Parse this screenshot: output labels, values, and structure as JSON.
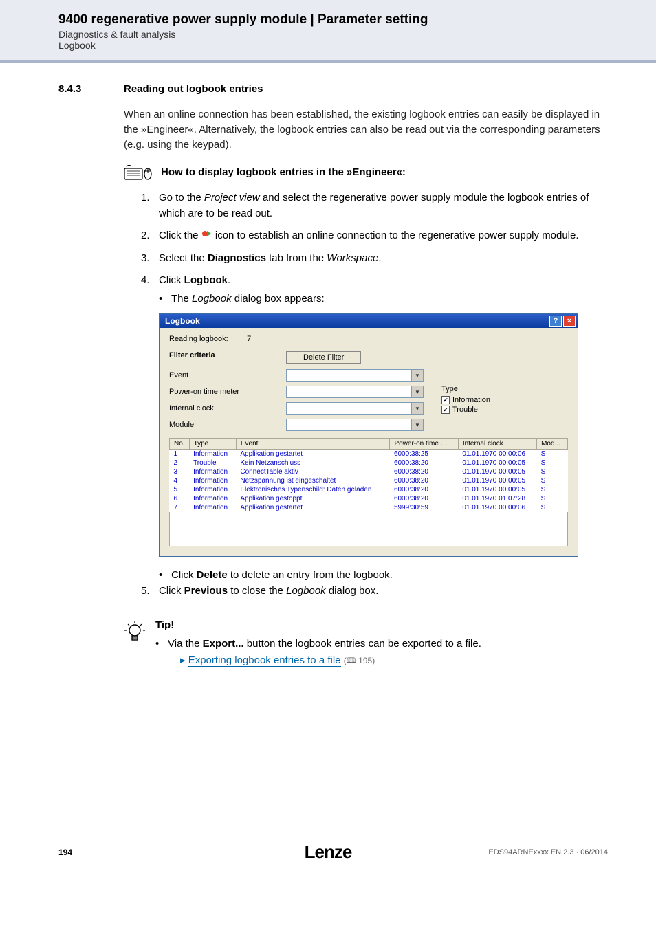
{
  "header": {
    "title": "9400 regenerative power supply module | Parameter setting",
    "sub1": "Diagnostics & fault analysis",
    "sub2": "Logbook",
    "bg_color": "#e8ecf2",
    "border_color": "#a8b4c8"
  },
  "section": {
    "number": "8.4.3",
    "title": "Reading out logbook entries"
  },
  "intro": "When an online connection has been established, the existing logbook entries can easily be displayed in the »Engineer«. Alternatively, the logbook entries can also be read out via the corresponding parameters (e.g. using the keypad).",
  "howto_title": "How to display logbook entries in the »Engineer«:",
  "steps": [
    {
      "num": "1.",
      "pre": "Go to the ",
      "italic": "Project view",
      "post": " and select the regenerative power supply module the logbook entries of which are to be read out."
    },
    {
      "num": "2.",
      "pre": "Click the ",
      "icon": true,
      "post": " icon to establish an online connection to the regenerative power supply module."
    },
    {
      "num": "3.",
      "pre": "Select the ",
      "bold": "Diagnostics",
      "post2_pre": " tab from the ",
      "italic": "Workspace",
      "post2_post": "."
    },
    {
      "num": "4.",
      "pre": "Click ",
      "bold": "Logbook",
      "post": ".",
      "sub_bullet_pre": "The ",
      "sub_bullet_italic": "Logbook",
      "sub_bullet_post": " dialog box appears:"
    }
  ],
  "dialog": {
    "title": "Logbook",
    "reading_label": "Reading logbook:",
    "reading_value": "7",
    "filter_title": "Filter criteria",
    "delete_filter": "Delete Filter",
    "labels": {
      "event": "Event",
      "power_on": "Power-on time meter",
      "clock": "Internal clock",
      "module": "Module"
    },
    "type": {
      "title": "Type",
      "opt1": "Information",
      "opt2": "Trouble"
    },
    "columns": [
      "No.",
      "Type",
      "Event",
      "Power-on time …",
      "Internal clock",
      "Mod..."
    ],
    "rows": [
      [
        "1",
        "Information",
        "Applikation gestartet",
        "6000:38:25",
        "01.01.1970 00:00:06",
        "S"
      ],
      [
        "2",
        "Trouble",
        "Kein Netzanschluss",
        "6000:38:20",
        "01.01.1970 00:00:05",
        "S"
      ],
      [
        "3",
        "Information",
        "ConnectTable aktiv",
        "6000:38:20",
        "01.01.1970 00:00:05",
        "S"
      ],
      [
        "4",
        "Information",
        "Netzspannung ist eingeschaltet",
        "6000:38:20",
        "01.01.1970 00:00:05",
        "S"
      ],
      [
        "5",
        "Information",
        "Elektronisches Typenschild: Daten geladen",
        "6000:38:20",
        "01.01.1970 00:00:05",
        "S"
      ],
      [
        "6",
        "Information",
        "Applikation gestoppt",
        "6000:38:20",
        "01.01.1970 01:07:28",
        "S"
      ],
      [
        "7",
        "Information",
        "Applikation gestartet",
        "5999:30:59",
        "01.01.1970 00:00:06",
        "S"
      ]
    ],
    "row_text_color": "#0000c8",
    "header_bg": "#ece9d8"
  },
  "after_dialog": {
    "bullet_pre": "Click ",
    "bullet_bold": "Delete",
    "bullet_post": " to delete an entry from the logbook."
  },
  "step5": {
    "num": "5.",
    "pre": "Click ",
    "bold": "Previous",
    "mid": " to close the ",
    "italic": "Logbook",
    "post": " dialog box."
  },
  "tip": {
    "title": "Tip!",
    "bullet_pre": "Via the ",
    "bullet_bold": "Export...",
    "bullet_post": " button the logbook entries can be exported to a file.",
    "link_text": "Exporting logbook entries to a file",
    "link_ref": "195",
    "link_color": "#0066aa"
  },
  "footer": {
    "page": "194",
    "logo": "Lenze",
    "doc": "EDS94ARNExxxx EN 2.3 · 06/2014"
  }
}
